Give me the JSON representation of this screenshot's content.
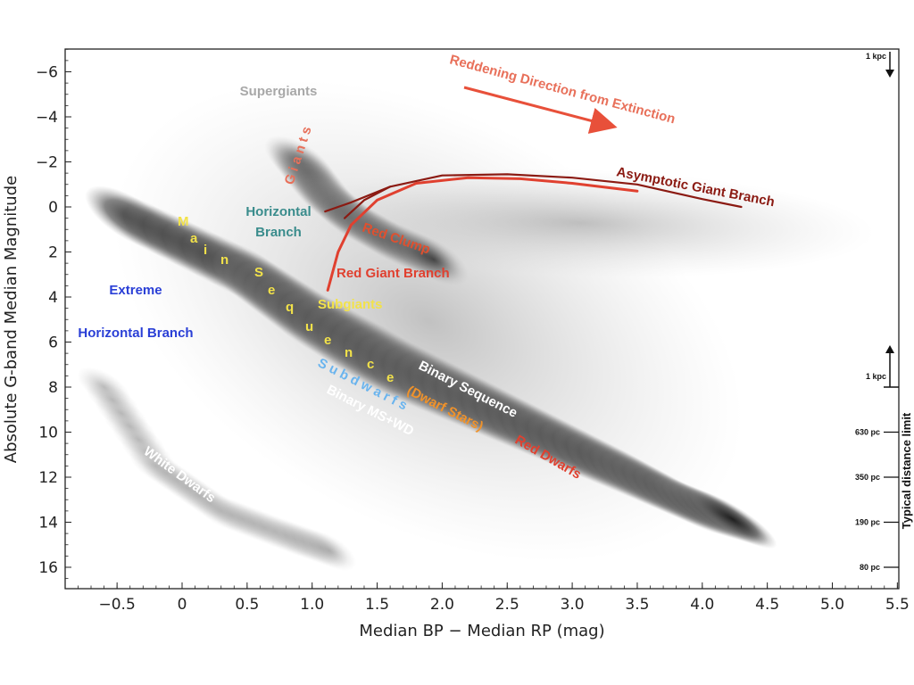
{
  "chart_data": {
    "type": "scatter",
    "title": "",
    "xlabel": "Median BP − Median RP (mag)",
    "ylabel": "Absolute G-band Median Magnitude",
    "xlim": [
      -0.9,
      5.5
    ],
    "ylim": [
      16.9,
      -7.0
    ],
    "y_inverted": true,
    "grid": false,
    "xticks": [
      -0.5,
      0.0,
      0.5,
      1.0,
      1.5,
      2.0,
      2.5,
      3.0,
      3.5,
      4.0,
      4.5,
      5.0,
      5.5
    ],
    "xtick_labels": [
      "−0.5",
      "0",
      "0.5",
      "1.0",
      "1.5",
      "2.0",
      "2.5",
      "3.0",
      "3.5",
      "4.0",
      "4.5",
      "5.0",
      "5.5"
    ],
    "yticks": [
      -6,
      -4,
      -2,
      0,
      2,
      4,
      6,
      8,
      10,
      12,
      14,
      16
    ],
    "ytick_labels": [
      "−6",
      "−4",
      "−2",
      "0",
      "2",
      "4",
      "6",
      "8",
      "10",
      "12",
      "14",
      "16"
    ],
    "density_regions": [
      {
        "name": "main sequence",
        "x": [
          -0.4,
          0.5,
          1.0,
          1.6,
          2.2,
          2.8,
          3.4,
          3.9,
          4.3
        ],
        "y": [
          0.5,
          3.0,
          5.0,
          7.0,
          8.6,
          10.2,
          11.8,
          13.2,
          14.0
        ]
      },
      {
        "name": "white dwarfs",
        "x": [
          -0.6,
          -0.2,
          0.3,
          0.8,
          1.2
        ],
        "y": [
          8.0,
          11.5,
          13.5,
          14.6,
          15.4
        ]
      },
      {
        "name": "giants",
        "x": [
          0.9,
          1.1,
          1.3,
          1.6,
          2.0
        ],
        "y": [
          -2.0,
          -0.5,
          0.5,
          1.5,
          2.5
        ]
      }
    ],
    "series": [
      {
        "name": "Asymptotic Giant Branch",
        "color": "#8b1a12",
        "x": [
          1.1,
          1.3,
          1.6,
          2.0,
          2.5,
          3.0,
          3.5,
          4.0,
          4.3
        ],
        "y": [
          0.2,
          -0.2,
          -0.9,
          -1.4,
          -1.45,
          -1.3,
          -1.0,
          -0.35,
          0.0
        ]
      },
      {
        "name": "Red Giant Branch",
        "color": "#e0402f",
        "x": [
          1.12,
          1.2,
          1.3,
          1.5,
          1.8,
          2.2,
          2.6,
          3.0,
          3.5
        ],
        "y": [
          3.7,
          2.0,
          0.8,
          -0.3,
          -1.05,
          -1.3,
          -1.25,
          -1.05,
          -0.7
        ]
      },
      {
        "name": "Red Clump",
        "color": "#8b1a12",
        "x": [
          1.25,
          1.4,
          1.6
        ],
        "y": [
          0.5,
          -0.3,
          -0.9
        ]
      }
    ],
    "annotations": [
      {
        "id": "supergiants",
        "text": "Supergiants",
        "color": "#a8a8a8"
      },
      {
        "id": "reddening",
        "text": "Reddening Direction from Extinction",
        "color": "#e8705a"
      },
      {
        "id": "giants",
        "text": "G i a n t s",
        "color": "#e8705a"
      },
      {
        "id": "hb1",
        "text": "Horizontal",
        "color": "#3a8c8c"
      },
      {
        "id": "hb2",
        "text": "Branch",
        "color": "#3a8c8c"
      },
      {
        "id": "agb",
        "text": "Asymptotic Giant Branch",
        "color": "#8b1a12"
      },
      {
        "id": "redclump",
        "text": "Red Clump",
        "color": "#e0502f"
      },
      {
        "id": "rgb",
        "text": "Red Giant Branch",
        "color": "#e0402f"
      },
      {
        "id": "subgiants",
        "text": "Subgiants",
        "color": "#f2e24a"
      },
      {
        "id": "ext1",
        "text": "Extreme",
        "color": "#2a3fd6"
      },
      {
        "id": "ext2",
        "text": "Horizontal  Branch",
        "color": "#2a3fd6"
      },
      {
        "id": "binseq",
        "text": "Binary Sequence",
        "color": "#ffffff"
      },
      {
        "id": "dwarfstars",
        "text": "(Dwarf Stars)",
        "color": "#f0922a"
      },
      {
        "id": "subdwarfs",
        "text": "S u b d w a r f s",
        "color": "#6ab4ee"
      },
      {
        "id": "binms",
        "text": "Binary MS+WD",
        "color": "#ffffff"
      },
      {
        "id": "reddwarfs",
        "text": "Red Dwarfs",
        "color": "#e0402f"
      },
      {
        "id": "whitedwarfs",
        "text": "White Dwarfs",
        "color": "#ffffff"
      }
    ],
    "main_sequence_letters": [
      "M",
      "a",
      "i",
      "n",
      "S",
      "e",
      "q",
      "u",
      "e",
      "n",
      "c",
      "e"
    ],
    "main_sequence_color": "#f2e24a",
    "distance_axis": {
      "title": "Typical distance limit",
      "upper_marker": "1 kpc",
      "lower_marker": "1 kpc",
      "ticks": [
        {
          "label": "630 pc",
          "mag": 10.0
        },
        {
          "label": "350 pc",
          "mag": 12.0
        },
        {
          "label": "190 pc",
          "mag": 14.0
        },
        {
          "label": "80 pc",
          "mag": 16.0
        }
      ]
    }
  }
}
